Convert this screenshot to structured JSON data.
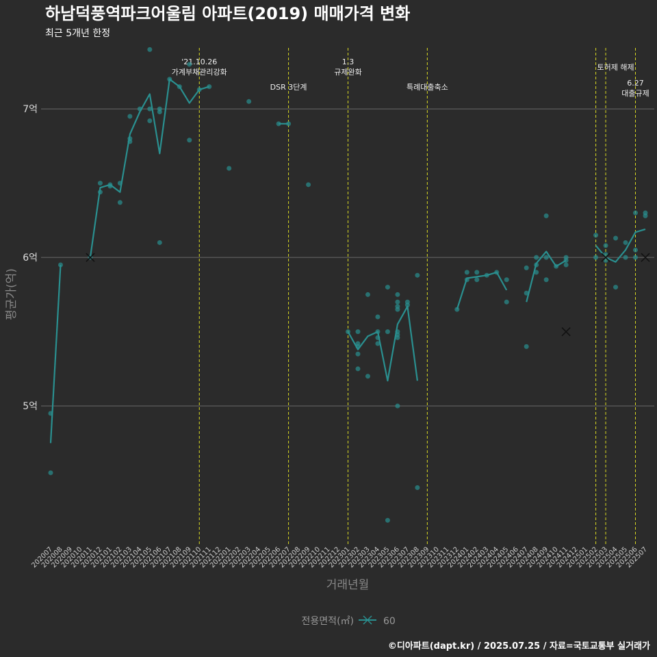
{
  "chart_data": {
    "type": "line",
    "title": "하남덕풍역파크어울림 아파트(2019) 매매가격 변화",
    "subtitle": "최근 5개년 한정",
    "xlabel": "거래년월",
    "ylabel": "평균가(억)",
    "caption": "©디아파트(dapt.kr) / 2025.07.25 / 자료=국토교통부 실거래가",
    "legend": {
      "title": "전용면적(㎡)",
      "label": "60"
    },
    "ylim": [
      4.07,
      7.42
    ],
    "yticks": [
      {
        "value": 5,
        "label": "5억"
      },
      {
        "value": 6,
        "label": "6억"
      },
      {
        "value": 7,
        "label": "7억"
      }
    ],
    "colors": {
      "background": "#2b2b2b",
      "series": "#2a9090",
      "grid": "#6a6a6a",
      "vline": "#dddd22",
      "cross": "#111111"
    },
    "months": [
      "202007",
      "202008",
      "202009",
      "202010",
      "202011",
      "202012",
      "202101",
      "202102",
      "202103",
      "202104",
      "202105",
      "202106",
      "202107",
      "202108",
      "202109",
      "202110",
      "202111",
      "202112",
      "202201",
      "202202",
      "202203",
      "202204",
      "202205",
      "202206",
      "202207",
      "202208",
      "202209",
      "202210",
      "202211",
      "202212",
      "202301",
      "202302",
      "202303",
      "202304",
      "202305",
      "202306",
      "202307",
      "202308",
      "202309",
      "202310",
      "202311",
      "202312",
      "202401",
      "202402",
      "202403",
      "202404",
      "202405",
      "202406",
      "202407",
      "202408",
      "202409",
      "202410",
      "202411",
      "202412",
      "202501",
      "202502",
      "202503",
      "202504",
      "202505",
      "202506",
      "202507"
    ],
    "line_segments": [
      [
        [
          0,
          4.75
        ],
        [
          1,
          5.95
        ]
      ],
      [
        [
          4,
          6.0
        ],
        [
          5,
          6.47
        ],
        [
          6,
          6.49
        ],
        [
          7,
          6.44
        ],
        [
          8,
          6.83
        ],
        [
          9,
          6.98
        ],
        [
          10,
          7.1
        ],
        [
          11,
          6.7
        ],
        [
          12,
          7.2
        ],
        [
          13,
          7.15
        ],
        [
          14,
          7.04
        ],
        [
          15,
          7.13
        ],
        [
          16,
          7.15
        ]
      ],
      [
        [
          23,
          6.9
        ],
        [
          24,
          6.9
        ]
      ],
      [
        [
          30,
          5.5
        ],
        [
          31,
          5.38
        ],
        [
          32,
          5.47
        ],
        [
          33,
          5.5
        ],
        [
          34,
          5.17
        ],
        [
          35,
          5.55
        ],
        [
          36,
          5.67
        ],
        [
          37,
          5.17
        ]
      ],
      [
        [
          41,
          5.65
        ],
        [
          42,
          5.86
        ],
        [
          43,
          5.87
        ],
        [
          44,
          5.88
        ],
        [
          45,
          5.9
        ],
        [
          46,
          5.78
        ]
      ],
      [
        [
          48,
          5.7
        ],
        [
          49,
          5.96
        ],
        [
          50,
          6.04
        ],
        [
          51,
          5.94
        ],
        [
          52,
          5.98
        ]
      ],
      [
        [
          55,
          6.08
        ],
        [
          56,
          6.0
        ],
        [
          57,
          5.97
        ],
        [
          58,
          6.05
        ],
        [
          59,
          6.17
        ],
        [
          60,
          6.19
        ]
      ]
    ],
    "points": [
      [
        0,
        4.95
      ],
      [
        0,
        4.55
      ],
      [
        1,
        5.95
      ],
      [
        4,
        6.0
      ],
      [
        5,
        6.5
      ],
      [
        5,
        6.44
      ],
      [
        6,
        6.49
      ],
      [
        6,
        6.48
      ],
      [
        7,
        6.5
      ],
      [
        7,
        6.37
      ],
      [
        8,
        6.95
      ],
      [
        8,
        6.8
      ],
      [
        8,
        6.78
      ],
      [
        9,
        7.0
      ],
      [
        10,
        7.4
      ],
      [
        10,
        7.0
      ],
      [
        10,
        6.92
      ],
      [
        11,
        7.0
      ],
      [
        11,
        6.98
      ],
      [
        11,
        6.1
      ],
      [
        12,
        7.2
      ],
      [
        13,
        7.15
      ],
      [
        14,
        7.3
      ],
      [
        14,
        6.79
      ],
      [
        15,
        7.13
      ],
      [
        16,
        7.15
      ],
      [
        18,
        6.6
      ],
      [
        20,
        7.05
      ],
      [
        23,
        6.9
      ],
      [
        24,
        6.9
      ],
      [
        26,
        6.49
      ],
      [
        30,
        5.5
      ],
      [
        31,
        5.5
      ],
      [
        31,
        5.42
      ],
      [
        31,
        5.4
      ],
      [
        31,
        5.35
      ],
      [
        31,
        5.25
      ],
      [
        32,
        5.75
      ],
      [
        32,
        5.2
      ],
      [
        33,
        5.6
      ],
      [
        33,
        5.5
      ],
      [
        33,
        5.46
      ],
      [
        33,
        5.42
      ],
      [
        34,
        5.8
      ],
      [
        34,
        5.5
      ],
      [
        34,
        4.23
      ],
      [
        35,
        5.75
      ],
      [
        35,
        5.7
      ],
      [
        35,
        5.67
      ],
      [
        35,
        5.65
      ],
      [
        35,
        5.5
      ],
      [
        35,
        5.48
      ],
      [
        35,
        5.46
      ],
      [
        35,
        5.0
      ],
      [
        36,
        5.7
      ],
      [
        36,
        5.68
      ],
      [
        37,
        5.88
      ],
      [
        37,
        4.45
      ],
      [
        41,
        5.65
      ],
      [
        42,
        5.9
      ],
      [
        42,
        5.85
      ],
      [
        43,
        5.9
      ],
      [
        43,
        5.85
      ],
      [
        44,
        5.88
      ],
      [
        45,
        5.9
      ],
      [
        46,
        5.85
      ],
      [
        46,
        5.7
      ],
      [
        48,
        5.93
      ],
      [
        48,
        5.76
      ],
      [
        48,
        5.4
      ],
      [
        49,
        6.0
      ],
      [
        49,
        5.95
      ],
      [
        49,
        5.9
      ],
      [
        50,
        6.28
      ],
      [
        50,
        6.0
      ],
      [
        50,
        5.85
      ],
      [
        51,
        5.94
      ],
      [
        52,
        6.0
      ],
      [
        52,
        5.98
      ],
      [
        52,
        5.95
      ],
      [
        55,
        6.15
      ],
      [
        55,
        6.0
      ],
      [
        56,
        6.08
      ],
      [
        56,
        6.02
      ],
      [
        56,
        5.98
      ],
      [
        57,
        6.13
      ],
      [
        57,
        5.8
      ],
      [
        58,
        6.1
      ],
      [
        58,
        6.0
      ],
      [
        59,
        6.3
      ],
      [
        59,
        6.05
      ],
      [
        59,
        6.0
      ],
      [
        60,
        6.3
      ],
      [
        60,
        6.28
      ]
    ],
    "crosses": [
      [
        4,
        6.0
      ],
      [
        52,
        5.5
      ],
      [
        56,
        6.0
      ],
      [
        60,
        6.0
      ]
    ],
    "events": [
      {
        "month": "202110",
        "lines": [
          "'21.10.26",
          "가계부채관리강화"
        ],
        "level": 0
      },
      {
        "month": "202207",
        "lines": [
          "DSR 3단계"
        ],
        "level": 1
      },
      {
        "month": "202301",
        "lines": [
          "1.3",
          "규제완화"
        ],
        "level": 0
      },
      {
        "month": "202309",
        "lines": [
          "특례대출축소"
        ],
        "level": 1
      },
      {
        "month": "202502",
        "lines": [
          "토허제 해제"
        ],
        "level": 2,
        "anchor": "end"
      },
      {
        "month": "202503",
        "lines": [],
        "level": 0
      },
      {
        "month": "202506",
        "lines": [
          "6.27",
          "대출규제"
        ],
        "level": 3
      }
    ]
  }
}
